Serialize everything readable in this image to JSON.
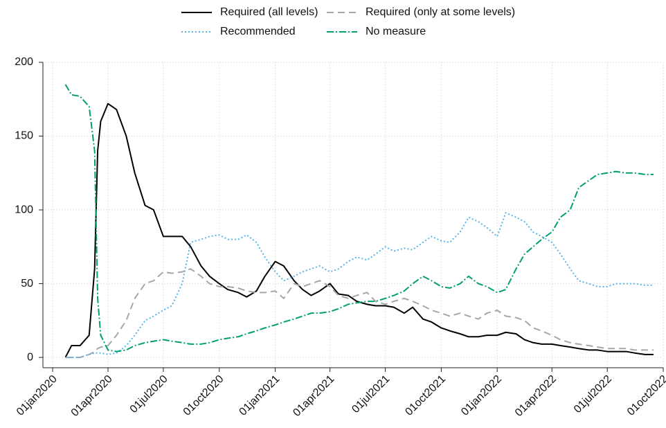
{
  "chart_data": {
    "type": "line",
    "x": [
      "2020-01-22",
      "2020-02-01",
      "2020-02-15",
      "2020-03-01",
      "2020-03-10",
      "2020-03-15",
      "2020-03-20",
      "2020-04-01",
      "2020-04-15",
      "2020-05-01",
      "2020-05-15",
      "2020-06-01",
      "2020-06-15",
      "2020-07-01",
      "2020-07-15",
      "2020-08-01",
      "2020-08-15",
      "2020-09-01",
      "2020-09-15",
      "2020-10-01",
      "2020-10-15",
      "2020-11-01",
      "2020-11-15",
      "2020-12-01",
      "2020-12-15",
      "2021-01-01",
      "2021-01-15",
      "2021-02-01",
      "2021-02-15",
      "2021-03-01",
      "2021-03-15",
      "2021-04-01",
      "2021-04-15",
      "2021-05-01",
      "2021-05-15",
      "2021-06-01",
      "2021-06-15",
      "2021-07-01",
      "2021-07-15",
      "2021-08-01",
      "2021-08-15",
      "2021-09-01",
      "2021-09-15",
      "2021-10-01",
      "2021-10-15",
      "2021-11-01",
      "2021-11-15",
      "2021-12-01",
      "2021-12-15",
      "2022-01-01",
      "2022-01-15",
      "2022-02-01",
      "2022-02-15",
      "2022-03-01",
      "2022-03-15",
      "2022-04-01",
      "2022-04-15",
      "2022-05-01",
      "2022-05-15",
      "2022-06-01",
      "2022-06-15",
      "2022-07-01",
      "2022-07-15",
      "2022-08-01",
      "2022-08-15",
      "2022-09-01",
      "2022-09-15"
    ],
    "series": [
      {
        "name": "Required (all levels)",
        "color": "#000000",
        "linestyle": "solid",
        "values": [
          0,
          8,
          8,
          15,
          60,
          140,
          160,
          172,
          168,
          150,
          125,
          103,
          100,
          82,
          82,
          82,
          75,
          62,
          55,
          50,
          46,
          44,
          41,
          45,
          55,
          65,
          62,
          52,
          46,
          42,
          45,
          50,
          43,
          42,
          38,
          36,
          35,
          35,
          34,
          30,
          34,
          26,
          24,
          20,
          18,
          16,
          14,
          14,
          15,
          15,
          17,
          16,
          12,
          10,
          9,
          9,
          8,
          7,
          6,
          5,
          5,
          4,
          4,
          4,
          3,
          2,
          2
        ]
      },
      {
        "name": "Required (only at some levels)",
        "color": "#a6a6a6",
        "linestyle": "dashed",
        "values": [
          0,
          0,
          0,
          2,
          4,
          6,
          7,
          8,
          15,
          25,
          40,
          50,
          52,
          58,
          57,
          58,
          60,
          55,
          50,
          48,
          48,
          47,
          45,
          44,
          44,
          45,
          40,
          50,
          48,
          50,
          52,
          48,
          42,
          40,
          42,
          44,
          38,
          36,
          38,
          40,
          38,
          35,
          32,
          30,
          28,
          30,
          28,
          26,
          30,
          32,
          28,
          27,
          25,
          20,
          18,
          15,
          12,
          10,
          9,
          8,
          7,
          6,
          6,
          6,
          5,
          5,
          5
        ]
      },
      {
        "name": "Recommended",
        "color": "#56b4e9",
        "linestyle": "dotted",
        "values": [
          0,
          0,
          0,
          2,
          3,
          3,
          3,
          2,
          3,
          8,
          15,
          25,
          28,
          32,
          35,
          50,
          78,
          80,
          82,
          83,
          80,
          80,
          83,
          78,
          68,
          58,
          52,
          55,
          58,
          60,
          62,
          58,
          60,
          65,
          68,
          66,
          70,
          75,
          72,
          74,
          73,
          78,
          82,
          79,
          78,
          85,
          95,
          92,
          88,
          82,
          98,
          95,
          92,
          85,
          82,
          78,
          70,
          60,
          52,
          50,
          48,
          48,
          50,
          50,
          50,
          49,
          49
        ]
      },
      {
        "name": "No measure",
        "color": "#009e73",
        "linestyle": "dashdot",
        "values": [
          185,
          178,
          177,
          170,
          140,
          40,
          15,
          5,
          4,
          5,
          8,
          10,
          11,
          12,
          11,
          10,
          9,
          9,
          10,
          12,
          13,
          14,
          16,
          18,
          20,
          22,
          24,
          26,
          28,
          30,
          30,
          31,
          33,
          36,
          37,
          38,
          38,
          40,
          42,
          45,
          50,
          55,
          52,
          48,
          47,
          50,
          55,
          50,
          48,
          44,
          46,
          60,
          70,
          75,
          80,
          85,
          95,
          100,
          115,
          120,
          124,
          125,
          126,
          125,
          125,
          124,
          124
        ]
      }
    ],
    "xlim": [
      "2019-12-16",
      "2022-10-01"
    ],
    "xticks": [
      {
        "value": "2020-01-01",
        "label": "01jan2020"
      },
      {
        "value": "2020-04-01",
        "label": "01apr2020"
      },
      {
        "value": "2020-07-01",
        "label": "01jul2020"
      },
      {
        "value": "2020-10-01",
        "label": "01oct2020"
      },
      {
        "value": "2021-01-01",
        "label": "01jan2021"
      },
      {
        "value": "2021-04-01",
        "label": "01apr2021"
      },
      {
        "value": "2021-07-01",
        "label": "01jul2021"
      },
      {
        "value": "2021-10-01",
        "label": "01oct2021"
      },
      {
        "value": "2022-01-01",
        "label": "01jan2022"
      },
      {
        "value": "2022-04-01",
        "label": "01apr2022"
      },
      {
        "value": "2022-07-01",
        "label": "01jul2022"
      },
      {
        "value": "2022-10-01",
        "label": "01oct2022"
      }
    ],
    "ylim": [
      -7,
      200
    ],
    "yticks": [
      0,
      50,
      100,
      150,
      200
    ],
    "grid": true,
    "legend": "top"
  }
}
